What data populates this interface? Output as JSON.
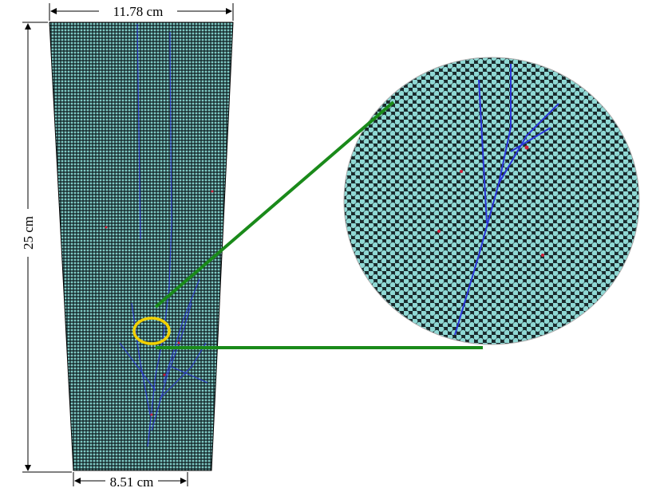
{
  "dimensions": {
    "top_width": "11.78 cm",
    "height": "25 cm",
    "bottom_width": "8.51 cm"
  }
}
